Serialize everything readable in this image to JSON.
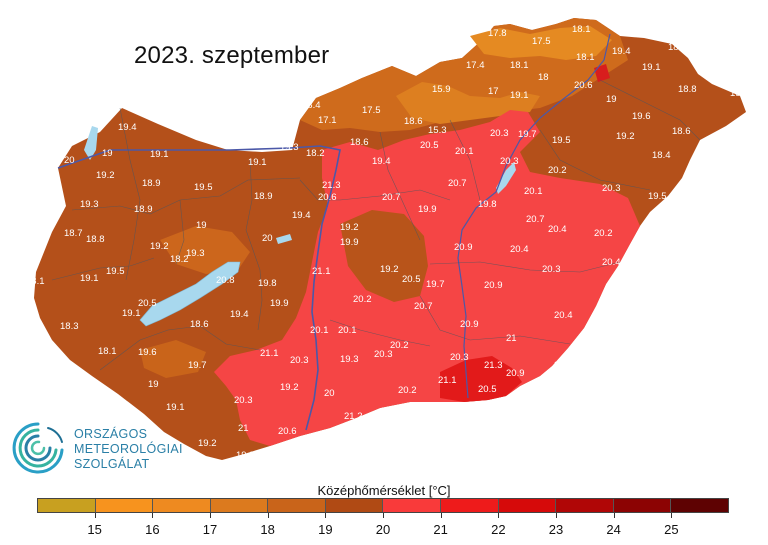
{
  "title": "2023. szeptember",
  "logo": {
    "lines": [
      "ORSZÁGOS",
      "METEOROLÓGIAI",
      "SZOLGÁLAT"
    ]
  },
  "legend": {
    "title": "Középhőmérséklet [°C]",
    "ticks": [
      "15",
      "16",
      "17",
      "18",
      "19",
      "20",
      "21",
      "22",
      "23",
      "24",
      "25"
    ],
    "colors": [
      "#c8a020",
      "#f7931e",
      "#ee8a20",
      "#dc7a1e",
      "#c9641a",
      "#b04a14",
      "#f93a3a",
      "#ee1b1b",
      "#d60a0a",
      "#b00606",
      "#8c0303",
      "#5e0202"
    ]
  },
  "colors": {
    "hot": "#f54545",
    "warm": "#b4501a",
    "mid": "#c8651c",
    "cool": "#d9761e",
    "lake": "#a8d8ee",
    "river": "#4b58a8"
  },
  "stations": [
    [
      "17.8"
    ],
    [
      "17.5"
    ],
    [
      "18.1"
    ],
    [
      "19.4"
    ],
    [
      "18.9"
    ],
    [
      "17.4"
    ],
    [
      "18.1"
    ],
    [
      "18"
    ],
    [
      "18.1"
    ],
    [
      "19.1"
    ],
    [
      "15.9"
    ],
    [
      "17"
    ],
    [
      "19.1"
    ],
    [
      "20.6"
    ],
    [
      "19"
    ],
    [
      "18.8"
    ],
    [
      "19.5"
    ],
    [
      "18.4"
    ],
    [
      "17.5"
    ],
    [
      "17.1"
    ],
    [
      "18.6"
    ],
    [
      "15.3"
    ],
    [
      "20.3"
    ],
    [
      "19.7"
    ],
    [
      "19.5"
    ],
    [
      "19.6"
    ],
    [
      "19.2"
    ],
    [
      "18.6"
    ],
    [
      "20.2"
    ],
    [
      "19.4"
    ],
    [
      "20"
    ],
    [
      "19"
    ],
    [
      "19.1"
    ],
    [
      "19.1"
    ],
    [
      "19.3"
    ],
    [
      "18.2"
    ],
    [
      "18.6"
    ],
    [
      "20.5"
    ],
    [
      "20.1"
    ],
    [
      "20.3"
    ],
    [
      "18.4"
    ],
    [
      "19.2"
    ],
    [
      "18.9"
    ],
    [
      "19.5"
    ],
    [
      "18.9"
    ],
    [
      "21.3"
    ],
    [
      "19.4"
    ],
    [
      "20.7"
    ],
    [
      "20.2"
    ],
    [
      "20.1"
    ],
    [
      "20.3"
    ],
    [
      "19.5"
    ],
    [
      "19.3"
    ],
    [
      "18.9"
    ],
    [
      "19"
    ],
    [
      "19.4"
    ],
    [
      "20.6"
    ],
    [
      "20.7"
    ],
    [
      "19.9"
    ],
    [
      "19.8"
    ],
    [
      "20.7"
    ],
    [
      "18.7"
    ],
    [
      "18.8"
    ],
    [
      "19.2"
    ],
    [
      "19.3"
    ],
    [
      "20"
    ],
    [
      "19.2"
    ],
    [
      "20.4"
    ],
    [
      "20.2"
    ],
    [
      "18.2"
    ],
    [
      "19.9"
    ],
    [
      "20.9"
    ],
    [
      "20.4"
    ],
    [
      "19.5"
    ],
    [
      "20.8"
    ],
    [
      "21.1"
    ],
    [
      "19.2"
    ],
    [
      "20.3"
    ],
    [
      "20.4"
    ],
    [
      "18.1"
    ],
    [
      "19.1"
    ],
    [
      "19.8"
    ],
    [
      "20.5"
    ],
    [
      "19.7"
    ],
    [
      "20.9"
    ],
    [
      "20.5"
    ],
    [
      "20.2"
    ],
    [
      "19.1"
    ],
    [
      "19.4"
    ],
    [
      "19.9"
    ],
    [
      "20.7"
    ],
    [
      "18.3"
    ],
    [
      "18.6"
    ],
    [
      "20.1"
    ],
    [
      "20.1"
    ],
    [
      "20.9"
    ],
    [
      "20.4"
    ],
    [
      "18.1"
    ],
    [
      "19.6"
    ],
    [
      "21.1"
    ],
    [
      "20.2"
    ],
    [
      "21"
    ],
    [
      "19.7"
    ],
    [
      "20.3"
    ],
    [
      "19.3"
    ],
    [
      "20.3"
    ],
    [
      "20.3"
    ],
    [
      "21.3"
    ],
    [
      "20.8"
    ],
    [
      "19"
    ],
    [
      "19.2"
    ],
    [
      "21.1"
    ],
    [
      "20.9"
    ],
    [
      "20.3"
    ],
    [
      "20"
    ],
    [
      "20.2"
    ],
    [
      "20.5"
    ],
    [
      "19.1"
    ],
    [
      "21.2"
    ],
    [
      "21"
    ],
    [
      "19.2"
    ],
    [
      "20.6"
    ],
    [
      "19.8"
    ]
  ]
}
